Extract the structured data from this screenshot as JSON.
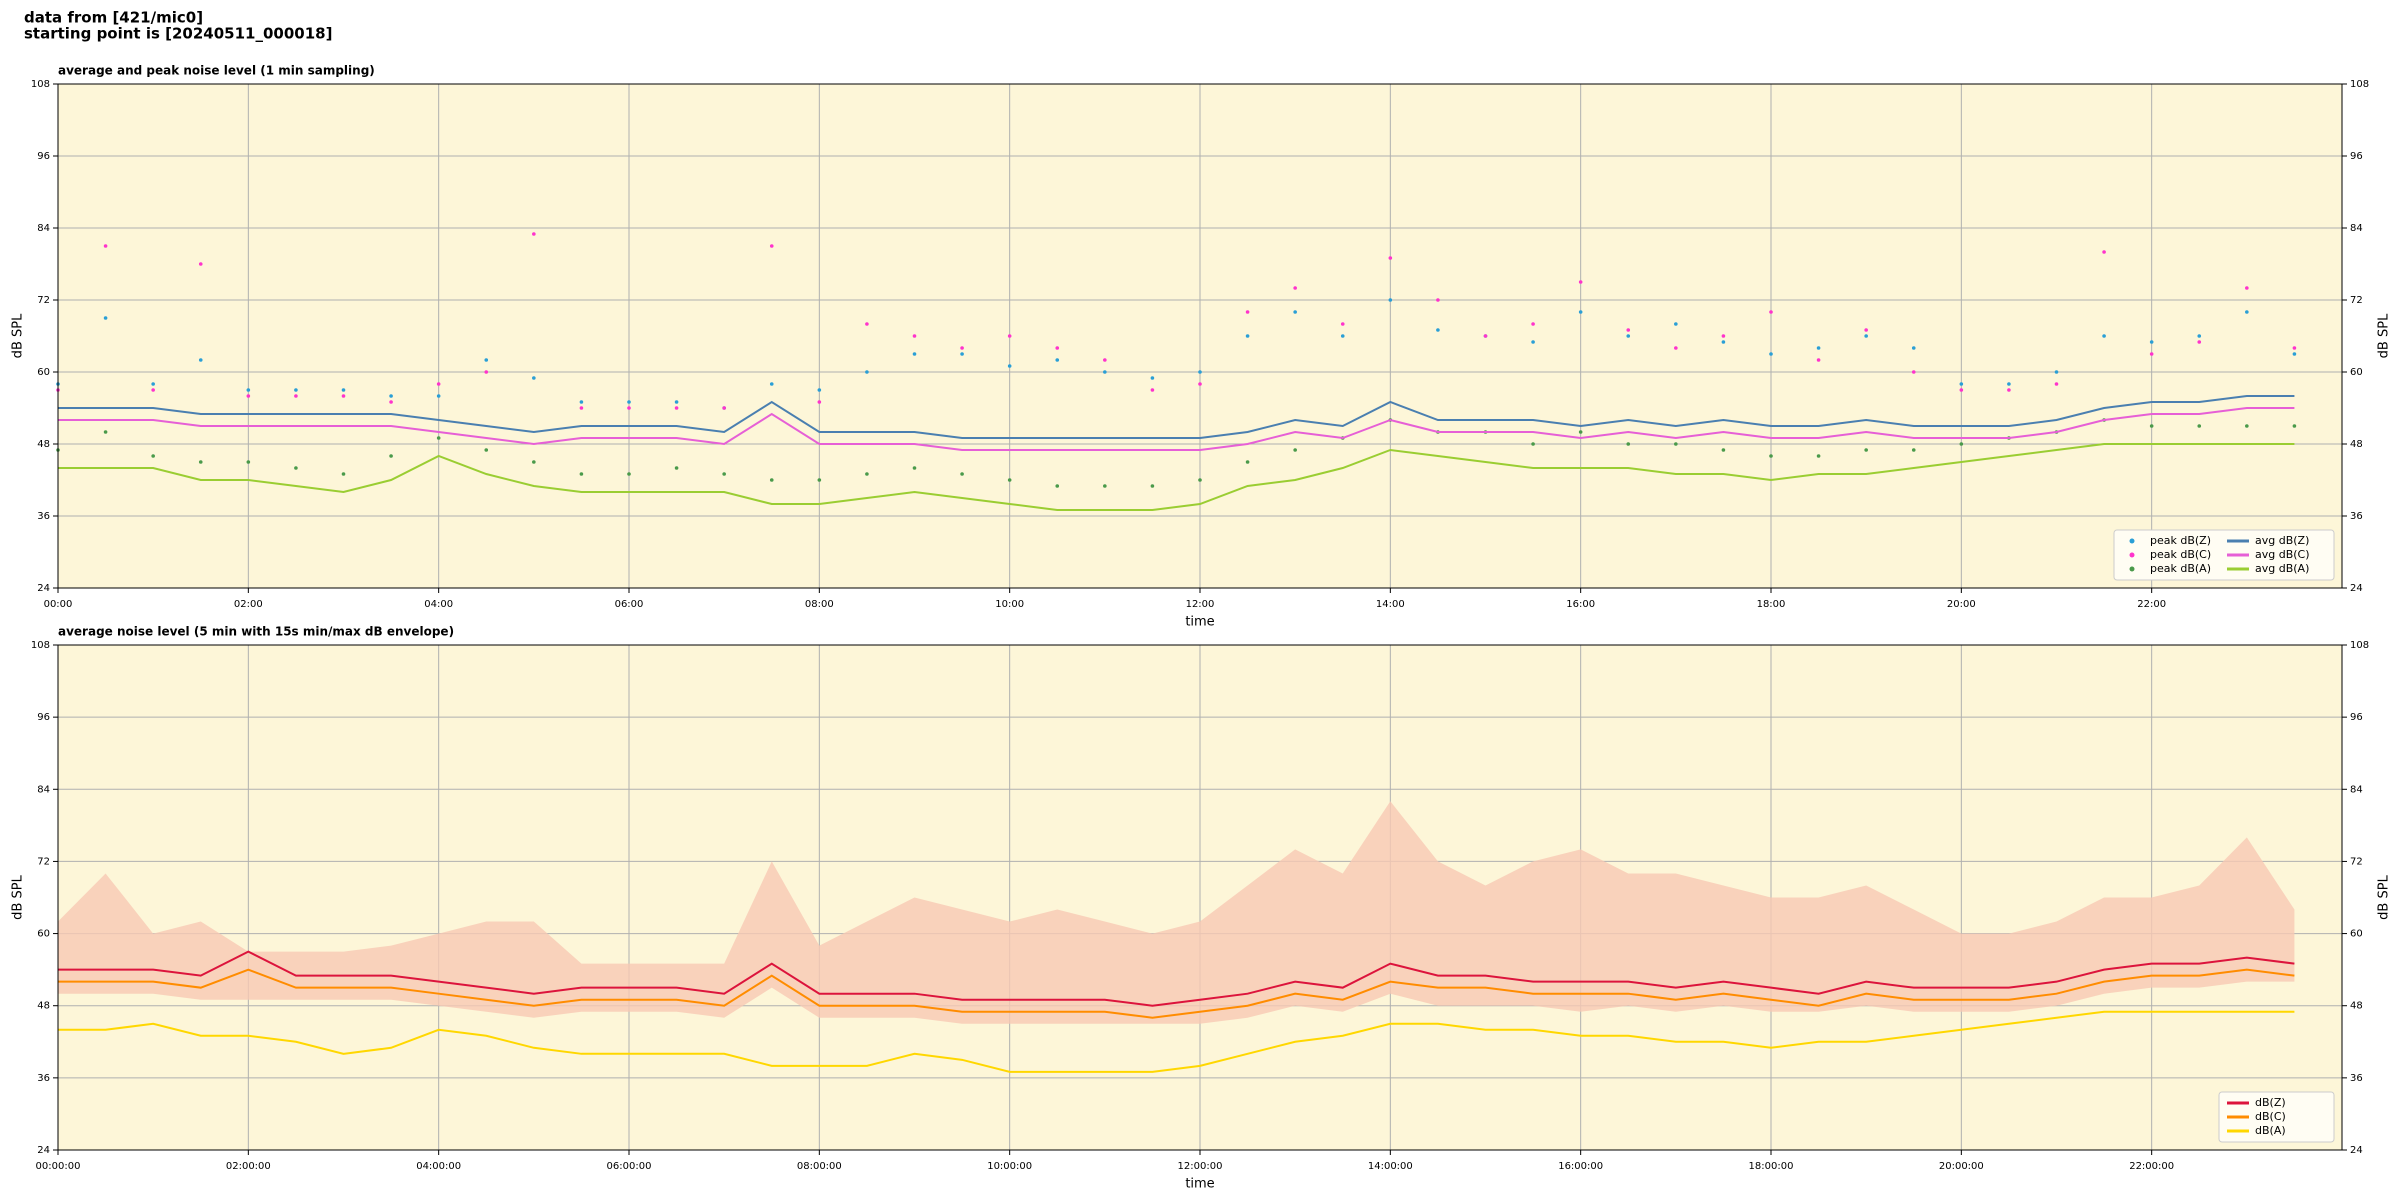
{
  "header": {
    "line1": "data from [421/mic0]",
    "line2": "starting point is [20240511_000018]"
  },
  "chart_data": [
    {
      "type": "line",
      "title": "average and peak noise level (1 min sampling)",
      "xlabel": "time",
      "ylabel": "dB SPL",
      "y2label": "dB SPL",
      "background": "#fdf6d8",
      "grid": true,
      "legend": "lower right",
      "legend_ncol": 2,
      "xlim": [
        0,
        24
      ],
      "ylim": [
        24,
        108
      ],
      "xticks": [
        {
          "value": 0,
          "label": "00:00"
        },
        {
          "value": 2,
          "label": "02:00"
        },
        {
          "value": 4,
          "label": "04:00"
        },
        {
          "value": 6,
          "label": "06:00"
        },
        {
          "value": 8,
          "label": "08:00"
        },
        {
          "value": 10,
          "label": "10:00"
        },
        {
          "value": 12,
          "label": "12:00"
        },
        {
          "value": 14,
          "label": "14:00"
        },
        {
          "value": 16,
          "label": "16:00"
        },
        {
          "value": 18,
          "label": "18:00"
        },
        {
          "value": 20,
          "label": "20:00"
        },
        {
          "value": 22,
          "label": "22:00"
        }
      ],
      "yticks": [
        24,
        36,
        48,
        60,
        72,
        84,
        96,
        108
      ],
      "x": [
        0,
        0.5,
        1,
        1.5,
        2,
        2.5,
        3,
        3.5,
        4,
        4.5,
        5,
        5.5,
        6,
        6.5,
        7,
        7.5,
        8,
        8.5,
        9,
        9.5,
        10,
        10.5,
        11,
        11.5,
        12,
        12.5,
        13,
        13.5,
        14,
        14.5,
        15,
        15.5,
        16,
        16.5,
        17,
        17.5,
        18,
        18.5,
        19,
        19.5,
        20,
        20.5,
        21,
        21.5,
        22,
        22.5,
        23,
        23.5
      ],
      "series": [
        {
          "name": "peak dB(Z)",
          "type": "scatter",
          "color": "#2a9fd6",
          "values": [
            58,
            69,
            58,
            62,
            57,
            57,
            57,
            56,
            56,
            62,
            59,
            55,
            55,
            55,
            54,
            58,
            57,
            60,
            63,
            63,
            61,
            62,
            60,
            59,
            60,
            66,
            70,
            66,
            72,
            67,
            66,
            65,
            70,
            66,
            68,
            65,
            63,
            64,
            66,
            64,
            58,
            58,
            60,
            66,
            65,
            66,
            70,
            63
          ]
        },
        {
          "name": "peak dB(C)",
          "type": "scatter",
          "color": "#ff33cc",
          "values": [
            57,
            81,
            57,
            78,
            56,
            56,
            56,
            55,
            58,
            60,
            83,
            54,
            54,
            54,
            54,
            81,
            55,
            68,
            66,
            64,
            66,
            64,
            62,
            57,
            58,
            70,
            74,
            68,
            79,
            72,
            66,
            68,
            75,
            67,
            64,
            66,
            70,
            62,
            67,
            60,
            57,
            57,
            58,
            80,
            63,
            65,
            74,
            64
          ]
        },
        {
          "name": "peak dB(A)",
          "type": "scatter",
          "color": "#4a9a4a",
          "values": [
            47,
            50,
            46,
            45,
            45,
            44,
            43,
            46,
            49,
            47,
            45,
            43,
            43,
            44,
            43,
            42,
            42,
            43,
            44,
            43,
            42,
            41,
            41,
            41,
            42,
            45,
            47,
            49,
            52,
            50,
            50,
            48,
            50,
            48,
            48,
            47,
            46,
            46,
            47,
            47,
            48,
            49,
            50,
            52,
            51,
            51,
            51,
            51
          ]
        },
        {
          "name": "avg dB(Z)",
          "type": "line",
          "color": "#4a7fb0",
          "values": [
            54,
            54,
            54,
            53,
            53,
            53,
            53,
            53,
            52,
            51,
            50,
            51,
            51,
            51,
            50,
            55,
            50,
            50,
            50,
            49,
            49,
            49,
            49,
            49,
            49,
            50,
            52,
            51,
            55,
            52,
            52,
            52,
            51,
            52,
            51,
            52,
            51,
            51,
            52,
            51,
            51,
            51,
            52,
            54,
            55,
            55,
            56,
            56
          ]
        },
        {
          "name": "avg dB(C)",
          "type": "line",
          "color": "#e65fd6",
          "values": [
            52,
            52,
            52,
            51,
            51,
            51,
            51,
            51,
            50,
            49,
            48,
            49,
            49,
            49,
            48,
            53,
            48,
            48,
            48,
            47,
            47,
            47,
            47,
            47,
            47,
            48,
            50,
            49,
            52,
            50,
            50,
            50,
            49,
            50,
            49,
            50,
            49,
            49,
            50,
            49,
            49,
            49,
            50,
            52,
            53,
            53,
            54,
            54
          ]
        },
        {
          "name": "avg dB(A)",
          "type": "line",
          "color": "#9acd32",
          "values": [
            44,
            44,
            44,
            42,
            42,
            41,
            40,
            42,
            46,
            43,
            41,
            40,
            40,
            40,
            40,
            38,
            38,
            39,
            40,
            39,
            38,
            37,
            37,
            37,
            38,
            41,
            42,
            44,
            47,
            46,
            45,
            44,
            44,
            44,
            43,
            43,
            42,
            43,
            43,
            44,
            45,
            46,
            47,
            48,
            48,
            48,
            48,
            48
          ]
        }
      ]
    },
    {
      "type": "line",
      "title": "average noise level (5 min with 15s min/max dB envelope)",
      "xlabel": "time",
      "ylabel": "dB SPL",
      "y2label": "dB SPL",
      "background": "#fdf6d8",
      "grid": true,
      "legend": "lower right",
      "legend_ncol": 1,
      "xlim": [
        0,
        24
      ],
      "ylim": [
        24,
        108
      ],
      "xticks": [
        {
          "value": 0,
          "label": "00:00:00"
        },
        {
          "value": 2,
          "label": "02:00:00"
        },
        {
          "value": 4,
          "label": "04:00:00"
        },
        {
          "value": 6,
          "label": "06:00:00"
        },
        {
          "value": 8,
          "label": "08:00:00"
        },
        {
          "value": 10,
          "label": "10:00:00"
        },
        {
          "value": 12,
          "label": "12:00:00"
        },
        {
          "value": 14,
          "label": "14:00:00"
        },
        {
          "value": 16,
          "label": "16:00:00"
        },
        {
          "value": 18,
          "label": "18:00:00"
        },
        {
          "value": 20,
          "label": "20:00:00"
        },
        {
          "value": 22,
          "label": "22:00:00"
        }
      ],
      "yticks": [
        24,
        36,
        48,
        60,
        72,
        84,
        96,
        108
      ],
      "x": [
        0,
        0.5,
        1,
        1.5,
        2,
        2.5,
        3,
        3.5,
        4,
        4.5,
        5,
        5.5,
        6,
        6.5,
        7,
        7.5,
        8,
        8.5,
        9,
        9.5,
        10,
        10.5,
        11,
        11.5,
        12,
        12.5,
        13,
        13.5,
        14,
        14.5,
        15,
        15.5,
        16,
        16.5,
        17,
        17.5,
        18,
        18.5,
        19,
        19.5,
        20,
        20.5,
        21,
        21.5,
        22,
        22.5,
        23,
        23.5
      ],
      "series": [
        {
          "type": "band",
          "color": "#f7c9b4",
          "high": [
            62,
            70,
            60,
            62,
            57,
            57,
            57,
            58,
            60,
            62,
            62,
            55,
            55,
            55,
            55,
            72,
            58,
            62,
            66,
            64,
            62,
            64,
            62,
            60,
            62,
            68,
            74,
            70,
            82,
            72,
            68,
            72,
            74,
            70,
            70,
            68,
            66,
            66,
            68,
            64,
            60,
            60,
            62,
            66,
            66,
            68,
            76,
            64
          ],
          "low": [
            50,
            50,
            50,
            49,
            49,
            49,
            49,
            49,
            48,
            47,
            46,
            47,
            47,
            47,
            46,
            51,
            46,
            46,
            46,
            45,
            45,
            45,
            45,
            45,
            45,
            46,
            48,
            47,
            50,
            48,
            48,
            48,
            47,
            48,
            47,
            48,
            47,
            47,
            48,
            47,
            47,
            47,
            48,
            50,
            51,
            51,
            52,
            52
          ]
        },
        {
          "name": "dB(Z)",
          "type": "line",
          "color": "#dc143c",
          "values": [
            54,
            54,
            54,
            53,
            57,
            53,
            53,
            53,
            52,
            51,
            50,
            51,
            51,
            51,
            50,
            55,
            50,
            50,
            50,
            49,
            49,
            49,
            49,
            48,
            49,
            50,
            52,
            51,
            55,
            53,
            53,
            52,
            52,
            52,
            51,
            52,
            51,
            50,
            52,
            51,
            51,
            51,
            52,
            54,
            55,
            55,
            56,
            55
          ]
        },
        {
          "name": "dB(C)",
          "type": "line",
          "color": "#ff8c00",
          "values": [
            52,
            52,
            52,
            51,
            54,
            51,
            51,
            51,
            50,
            49,
            48,
            49,
            49,
            49,
            48,
            53,
            48,
            48,
            48,
            47,
            47,
            47,
            47,
            46,
            47,
            48,
            50,
            49,
            52,
            51,
            51,
            50,
            50,
            50,
            49,
            50,
            49,
            48,
            50,
            49,
            49,
            49,
            50,
            52,
            53,
            53,
            54,
            53
          ]
        },
        {
          "name": "dB(A)",
          "type": "line",
          "color": "#ffd700",
          "values": [
            44,
            44,
            45,
            43,
            43,
            42,
            40,
            41,
            44,
            43,
            41,
            40,
            40,
            40,
            40,
            38,
            38,
            38,
            40,
            39,
            37,
            37,
            37,
            37,
            38,
            40,
            42,
            43,
            45,
            45,
            44,
            44,
            43,
            43,
            42,
            42,
            41,
            42,
            42,
            43,
            44,
            45,
            46,
            47,
            47,
            47,
            47,
            47
          ]
        }
      ]
    }
  ]
}
